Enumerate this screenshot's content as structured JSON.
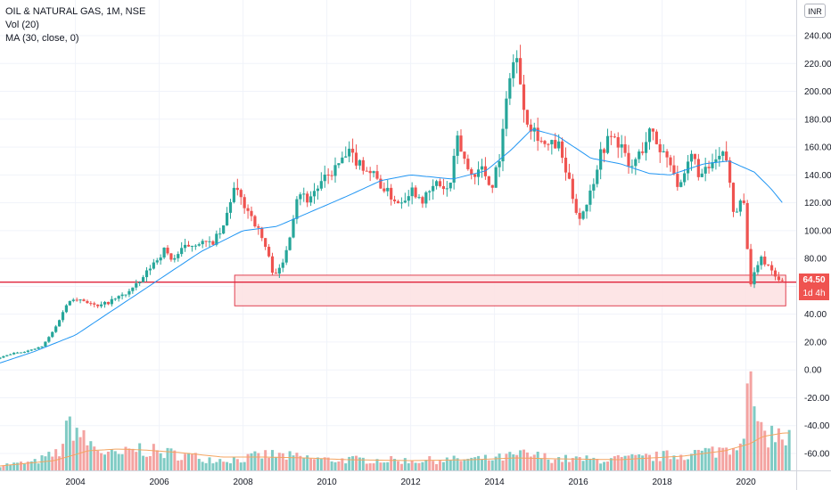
{
  "legend": {
    "symbol_line": "OIL & NATURAL GAS, 1M, NSE",
    "volume_line": "Vol (20)",
    "ma_line": "MA (30, close, 0)"
  },
  "currency_badge": "INR",
  "last_price_label": "64.50",
  "countdown_label": "1d 4h",
  "colors": {
    "up": "#26a69a",
    "down": "#ef5350",
    "ma": "#2196f3",
    "vol_up": "#7fcbc4",
    "vol_down": "#f4a3a1",
    "vol_ma": "#f4a460",
    "zone_fill": "#fde0e2",
    "zone_border": "#e04050",
    "hline": "#e0223a"
  },
  "chart_data": {
    "type": "candlestick",
    "symbol": "OIL & NATURAL GAS",
    "interval": "1M",
    "exchange": "NSE",
    "currency": "INR",
    "y_axis": {
      "ticks": [
        240,
        220,
        200,
        180,
        160,
        140,
        120,
        100,
        80,
        60,
        40,
        20,
        0,
        -20,
        -40,
        -60
      ],
      "tick_labels": [
        "240.00",
        "220.00",
        "200.00",
        "180.00",
        "160.00",
        "140.00",
        "120.00",
        "100.00",
        "80.00",
        "60.00",
        "40.00",
        "20.00",
        "0.00",
        "-20.00",
        "-40.00",
        "-60.00"
      ],
      "range": [
        -70,
        252
      ],
      "grid": true
    },
    "x_axis": {
      "ticks": [
        2004,
        2006,
        2008,
        2010,
        2012,
        2014,
        2016,
        2018,
        2020
      ],
      "tick_labels": [
        "2004",
        "2006",
        "2008",
        "2010",
        "2012",
        "2014",
        "2016",
        "2018",
        "2020"
      ],
      "range": [
        2002.2,
        2021.2
      ],
      "grid": true
    },
    "last_price": 64.5,
    "support_zone": {
      "x_from": 2007.8,
      "x_to": 2020.95,
      "y_from": 46,
      "y_to": 68
    },
    "horizontal_line": {
      "y": 63
    },
    "price_anchors": [
      [
        2002.2,
        8
      ],
      [
        2002.6,
        12
      ],
      [
        2003.0,
        14
      ],
      [
        2003.3,
        17
      ],
      [
        2003.6,
        30
      ],
      [
        2003.8,
        43
      ],
      [
        2004.0,
        52
      ],
      [
        2004.3,
        50
      ],
      [
        2004.6,
        45
      ],
      [
        2004.9,
        49
      ],
      [
        2005.3,
        55
      ],
      [
        2005.6,
        62
      ],
      [
        2005.9,
        75
      ],
      [
        2006.2,
        86
      ],
      [
        2006.4,
        79
      ],
      [
        2006.7,
        88
      ],
      [
        2007.0,
        92
      ],
      [
        2007.3,
        90
      ],
      [
        2007.6,
        100
      ],
      [
        2007.85,
        130
      ],
      [
        2008.0,
        124
      ],
      [
        2008.3,
        110
      ],
      [
        2008.6,
        90
      ],
      [
        2008.8,
        70
      ],
      [
        2009.0,
        72
      ],
      [
        2009.2,
        98
      ],
      [
        2009.4,
        130
      ],
      [
        2009.6,
        122
      ],
      [
        2009.9,
        132
      ],
      [
        2010.2,
        142
      ],
      [
        2010.6,
        155
      ],
      [
        2010.9,
        148
      ],
      [
        2011.2,
        140
      ],
      [
        2011.5,
        128
      ],
      [
        2011.8,
        120
      ],
      [
        2012.1,
        130
      ],
      [
        2012.4,
        122
      ],
      [
        2012.7,
        134
      ],
      [
        2013.0,
        128
      ],
      [
        2013.2,
        165
      ],
      [
        2013.5,
        140
      ],
      [
        2013.8,
        145
      ],
      [
        2014.0,
        130
      ],
      [
        2014.25,
        160
      ],
      [
        2014.45,
        215
      ],
      [
        2014.6,
        225
      ],
      [
        2014.85,
        180
      ],
      [
        2015.1,
        170
      ],
      [
        2015.3,
        160
      ],
      [
        2015.6,
        162
      ],
      [
        2015.9,
        130
      ],
      [
        2016.1,
        108
      ],
      [
        2016.35,
        125
      ],
      [
        2016.6,
        155
      ],
      [
        2016.85,
        168
      ],
      [
        2017.1,
        162
      ],
      [
        2017.3,
        143
      ],
      [
        2017.6,
        158
      ],
      [
        2017.8,
        172
      ],
      [
        2018.0,
        160
      ],
      [
        2018.3,
        150
      ],
      [
        2018.5,
        128
      ],
      [
        2018.8,
        155
      ],
      [
        2019.0,
        138
      ],
      [
        2019.3,
        148
      ],
      [
        2019.6,
        155
      ],
      [
        2019.8,
        110
      ],
      [
        2020.0,
        130
      ],
      [
        2020.2,
        60
      ],
      [
        2020.4,
        80
      ],
      [
        2020.6,
        76
      ],
      [
        2020.85,
        64.5
      ]
    ],
    "moving_average_anchors": [
      [
        2002.2,
        5
      ],
      [
        2003.0,
        13
      ],
      [
        2004.0,
        25
      ],
      [
        2005.0,
        45
      ],
      [
        2006.0,
        65
      ],
      [
        2007.0,
        85
      ],
      [
        2008.0,
        100
      ],
      [
        2008.8,
        103
      ],
      [
        2009.5,
        112
      ],
      [
        2010.5,
        125
      ],
      [
        2011.3,
        136
      ],
      [
        2012.0,
        140
      ],
      [
        2013.0,
        137
      ],
      [
        2013.8,
        143
      ],
      [
        2014.4,
        158
      ],
      [
        2014.9,
        173
      ],
      [
        2015.5,
        168
      ],
      [
        2016.3,
        152
      ],
      [
        2017.0,
        148
      ],
      [
        2017.7,
        141
      ],
      [
        2018.2,
        140
      ],
      [
        2019.0,
        148
      ],
      [
        2019.6,
        150
      ],
      [
        2020.2,
        142
      ],
      [
        2020.6,
        130
      ],
      [
        2020.9,
        119
      ]
    ],
    "volume_anchors": [
      [
        2002.2,
        6
      ],
      [
        2003.0,
        9
      ],
      [
        2003.6,
        20
      ],
      [
        2003.9,
        55
      ],
      [
        2004.2,
        34
      ],
      [
        2004.6,
        22
      ],
      [
        2005.0,
        16
      ],
      [
        2005.5,
        25
      ],
      [
        2006.0,
        20
      ],
      [
        2006.5,
        18
      ],
      [
        2007.0,
        14
      ],
      [
        2007.5,
        12
      ],
      [
        2008.0,
        13
      ],
      [
        2008.6,
        18
      ],
      [
        2009.0,
        16
      ],
      [
        2009.5,
        14
      ],
      [
        2010.0,
        12
      ],
      [
        2011.0,
        12
      ],
      [
        2012.0,
        11
      ],
      [
        2013.0,
        12
      ],
      [
        2014.0,
        13
      ],
      [
        2014.7,
        18
      ],
      [
        2015.5,
        13
      ],
      [
        2016.5,
        12
      ],
      [
        2017.5,
        14
      ],
      [
        2018.5,
        18
      ],
      [
        2019.3,
        22
      ],
      [
        2019.8,
        30
      ],
      [
        2020.15,
        98
      ],
      [
        2020.3,
        38
      ],
      [
        2020.6,
        42
      ],
      [
        2020.9,
        35
      ]
    ],
    "volume_ma_anchors": [
      [
        2002.2,
        5
      ],
      [
        2003.5,
        11
      ],
      [
        2004.3,
        22
      ],
      [
        2005.0,
        24
      ],
      [
        2005.6,
        23
      ],
      [
        2006.5,
        20
      ],
      [
        2007.5,
        15
      ],
      [
        2008.5,
        15
      ],
      [
        2009.5,
        14
      ],
      [
        2010.5,
        12
      ],
      [
        2012.0,
        11
      ],
      [
        2013.5,
        12
      ],
      [
        2014.5,
        14
      ],
      [
        2015.5,
        13
      ],
      [
        2017.0,
        12
      ],
      [
        2018.5,
        16
      ],
      [
        2019.5,
        22
      ],
      [
        2020.1,
        30
      ],
      [
        2020.4,
        38
      ],
      [
        2020.9,
        42
      ]
    ]
  }
}
